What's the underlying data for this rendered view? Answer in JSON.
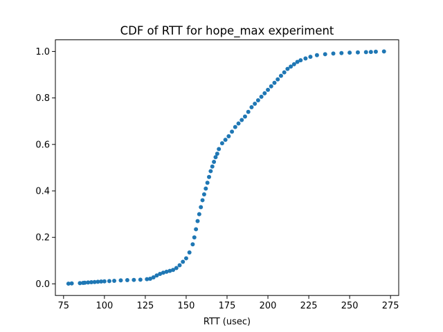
{
  "chart_data": {
    "type": "scatter",
    "title": "CDF of RTT for hope_max experiment",
    "xlabel": "RTT (usec)",
    "ylabel": "",
    "xlim": [
      70,
      280
    ],
    "ylim": [
      -0.05,
      1.05
    ],
    "xticks": [
      75,
      100,
      125,
      150,
      175,
      200,
      225,
      250,
      275
    ],
    "yticks": [
      0.0,
      0.2,
      0.4,
      0.6,
      0.8,
      1.0
    ],
    "ytick_labels": [
      "0.0",
      "0.2",
      "0.4",
      "0.6",
      "0.8",
      "1.0"
    ],
    "grid": false,
    "marker_color": "#1f77b4",
    "series": [
      {
        "x": [
          78,
          80,
          85,
          87,
          88,
          90,
          92,
          94,
          96,
          98,
          100,
          103,
          106,
          110,
          114,
          118,
          122,
          126,
          128,
          130,
          132,
          134,
          136,
          138,
          140,
          142,
          144,
          146,
          148,
          150,
          152,
          154,
          155,
          156,
          157,
          158,
          159,
          160,
          161,
          162,
          163,
          164,
          165,
          166,
          167,
          168,
          169,
          170,
          172,
          174,
          176,
          178,
          180,
          182,
          184,
          186,
          188,
          190,
          192,
          194,
          196,
          198,
          200,
          202,
          204,
          206,
          208,
          210,
          212,
          214,
          216,
          218,
          220,
          223,
          226,
          230,
          235,
          240,
          245,
          250,
          255,
          260,
          263,
          266,
          271
        ],
        "y": [
          0.001,
          0.002,
          0.003,
          0.004,
          0.005,
          0.006,
          0.007,
          0.008,
          0.009,
          0.01,
          0.011,
          0.012,
          0.013,
          0.015,
          0.016,
          0.017,
          0.018,
          0.02,
          0.022,
          0.028,
          0.036,
          0.043,
          0.048,
          0.052,
          0.056,
          0.06,
          0.068,
          0.08,
          0.095,
          0.11,
          0.135,
          0.17,
          0.2,
          0.235,
          0.27,
          0.3,
          0.33,
          0.36,
          0.385,
          0.41,
          0.435,
          0.46,
          0.485,
          0.505,
          0.525,
          0.545,
          0.56,
          0.58,
          0.605,
          0.62,
          0.635,
          0.655,
          0.675,
          0.69,
          0.705,
          0.72,
          0.74,
          0.76,
          0.775,
          0.79,
          0.805,
          0.82,
          0.835,
          0.85,
          0.865,
          0.88,
          0.895,
          0.91,
          0.925,
          0.935,
          0.945,
          0.955,
          0.962,
          0.97,
          0.977,
          0.984,
          0.988,
          0.991,
          0.993,
          0.995,
          0.996,
          0.997,
          0.998,
          0.999,
          1.0
        ]
      }
    ]
  }
}
